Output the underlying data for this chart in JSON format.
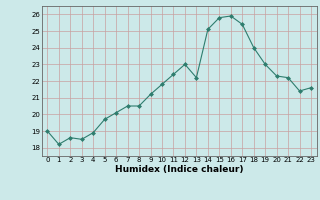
{
  "x": [
    0,
    1,
    2,
    3,
    4,
    5,
    6,
    7,
    8,
    9,
    10,
    11,
    12,
    13,
    14,
    15,
    16,
    17,
    18,
    19,
    20,
    21,
    22,
    23
  ],
  "y": [
    19.0,
    18.2,
    18.6,
    18.5,
    18.9,
    19.7,
    20.1,
    20.5,
    20.5,
    21.2,
    21.8,
    22.4,
    23.0,
    22.2,
    25.1,
    25.8,
    25.9,
    25.4,
    24.0,
    23.0,
    22.3,
    22.2,
    21.4,
    21.6
  ],
  "xlabel": "Humidex (Indice chaleur)",
  "ylim": [
    17.5,
    26.5
  ],
  "xlim": [
    -0.5,
    23.5
  ],
  "yticks": [
    18,
    19,
    20,
    21,
    22,
    23,
    24,
    25,
    26
  ],
  "xticks": [
    0,
    1,
    2,
    3,
    4,
    5,
    6,
    7,
    8,
    9,
    10,
    11,
    12,
    13,
    14,
    15,
    16,
    17,
    18,
    19,
    20,
    21,
    22,
    23
  ],
  "line_color": "#2e7d6e",
  "marker": "D",
  "marker_size": 2.0,
  "bg_color": "#cce9e9",
  "grid_color": "#c8a0a0",
  "xlabel_fontsize": 6.5,
  "tick_fontsize": 5.0
}
